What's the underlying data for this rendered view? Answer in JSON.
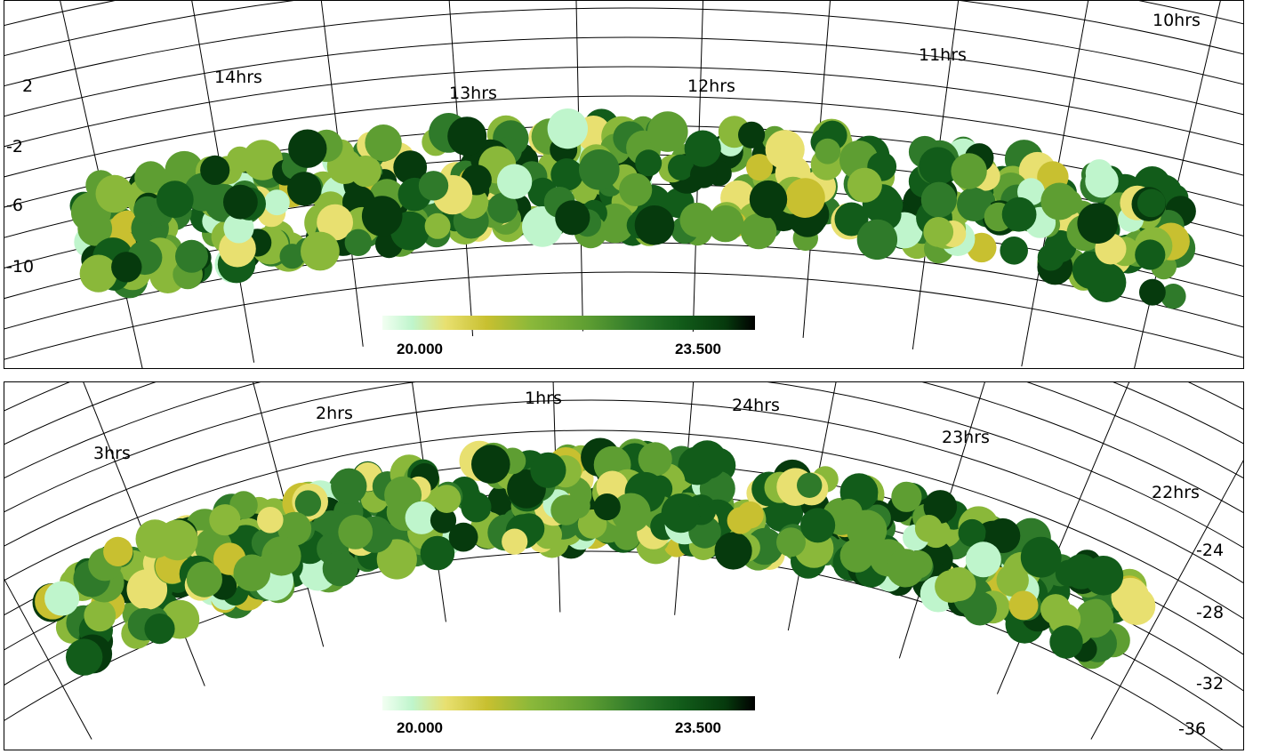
{
  "colors": {
    "gradient": [
      "#f2fff2",
      "#bff5cc",
      "#e8e070",
      "#c8c030",
      "#8ab83a",
      "#5e9e32",
      "#2f7a2a",
      "#125c1a",
      "#063a0d",
      "#000000"
    ],
    "grid": "#000000"
  },
  "panels": [
    {
      "id": "top",
      "ra_labels": [
        "14hrs",
        "13hrs",
        "12hrs",
        "11hrs",
        "10hrs"
      ],
      "dec_labels": [
        "2",
        "-2",
        "-6",
        "-10"
      ],
      "colorbar": {
        "min_label": "20.000",
        "max_label": "23.500",
        "min": 20.0,
        "max": 23.5
      }
    },
    {
      "id": "bottom",
      "ra_labels": [
        "3hrs",
        "2hrs",
        "1hrs",
        "24hrs",
        "23hrs",
        "22hrs"
      ],
      "dec_labels": [
        "-24",
        "-28",
        "-32",
        "-36"
      ],
      "colorbar": {
        "min_label": "20.000",
        "max_label": "23.500",
        "min": 20.0,
        "max": 23.5
      }
    }
  ]
}
